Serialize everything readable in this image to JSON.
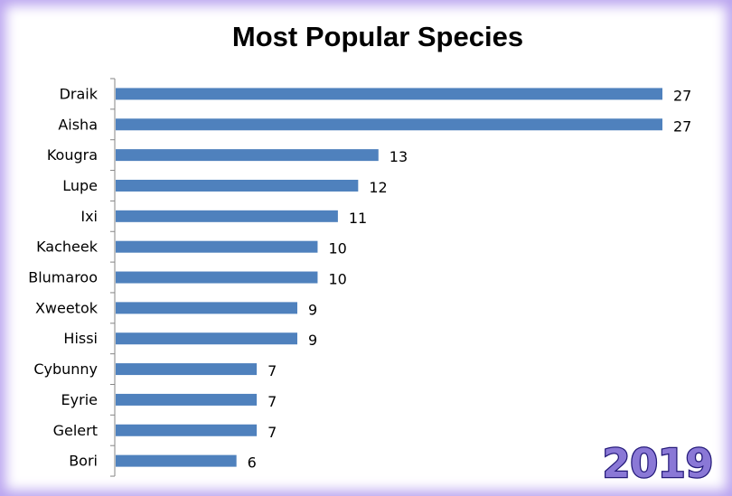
{
  "chart_data": {
    "type": "bar",
    "orientation": "horizontal",
    "title": "Most Popular Species",
    "categories": [
      "Draik",
      "Aisha",
      "Kougra",
      "Lupe",
      "Ixi",
      "Kacheek",
      "Blumaroo",
      "Xweetok",
      "Hissi",
      "Cybunny",
      "Eyrie",
      "Gelert",
      "Bori"
    ],
    "values": [
      27,
      27,
      13,
      12,
      11,
      10,
      10,
      9,
      9,
      7,
      7,
      7,
      6
    ],
    "xlim": [
      0,
      27
    ],
    "grid": false,
    "data_labels": true,
    "bar_color": "#4f81bd"
  },
  "badge": {
    "year": "2019"
  },
  "colors": {
    "frame_glow": "#b9a3ef",
    "badge_fill": "#8a78d6",
    "badge_stroke": "#241a7a"
  }
}
